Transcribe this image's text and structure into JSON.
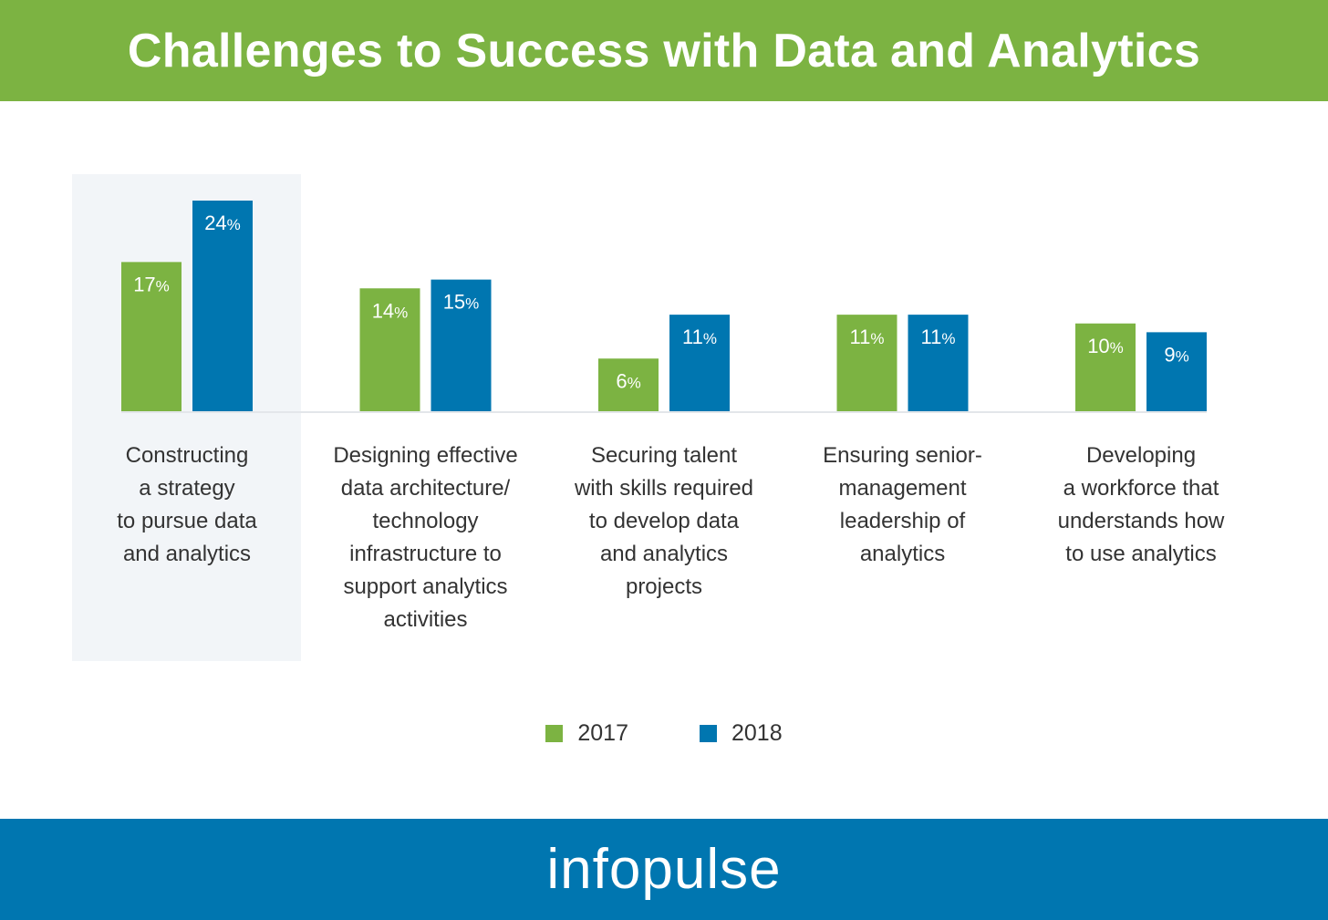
{
  "header": {
    "title": "Challenges to Success with Data and Analytics"
  },
  "footer": {
    "brand": "infopulse"
  },
  "colors": {
    "green": "#7cb342",
    "blue": "#0076b0",
    "highlight": "#f2f5f8",
    "baseline": "#e3e6ea"
  },
  "chart_data": {
    "type": "bar",
    "title": "Challenges to Success with Data and Analytics",
    "categories": [
      "Constructing\na strategy\nto pursue data\nand analytics",
      "Designing effective\ndata architecture/\ntechnology\ninfrastructure to\nsupport analytics\nactivities",
      "Securing talent\nwith skills required\nto develop data\nand analytics\nprojects",
      "Ensuring senior-\nmanagement\nleadership of\nanalytics",
      "Developing\na workforce that\nunderstands how\nto use analytics"
    ],
    "series": [
      {
        "name": "2017",
        "values": [
          17,
          14,
          6,
          11,
          10
        ],
        "labels": [
          "17%",
          "14%",
          "6%",
          "11%",
          "10%"
        ],
        "color": "#7cb342"
      },
      {
        "name": "2018",
        "values": [
          24,
          15,
          11,
          11,
          9
        ],
        "labels": [
          "24%",
          "15%",
          "11%",
          "11%",
          "9%"
        ],
        "color": "#0076b0"
      }
    ],
    "unit": "%",
    "ylim": [
      0,
      24
    ],
    "highlighted_category": 0,
    "grid": false,
    "legend_position": "bottom-center"
  }
}
